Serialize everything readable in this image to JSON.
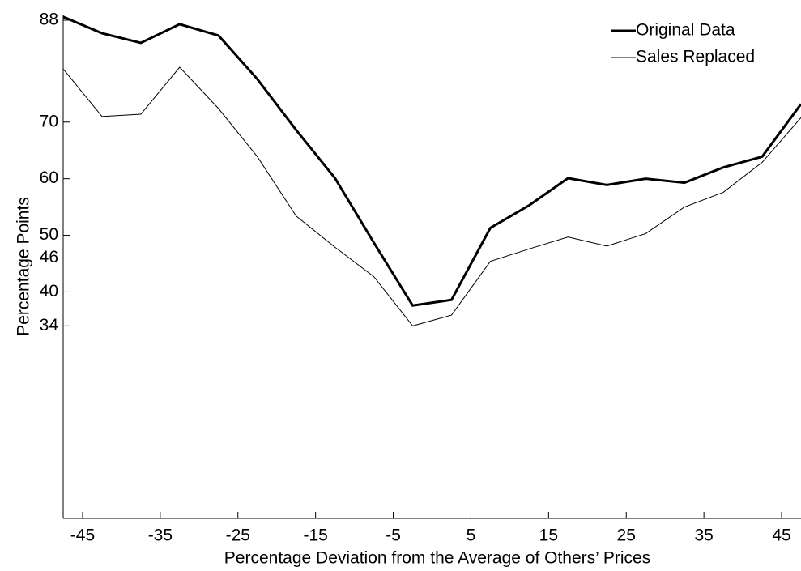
{
  "chart_data": {
    "type": "line",
    "x_label": "Percentage Deviation from the Average of Others’ Prices",
    "y_label": "Percentage Points",
    "x": [
      -47.5,
      -42.5,
      -37.5,
      -32.5,
      -27.5,
      -22.5,
      -17.5,
      -12.5,
      -7.5,
      -2.5,
      2.5,
      7.5,
      12.5,
      17.5,
      22.5,
      27.5,
      32.5,
      37.5,
      42.5,
      47.5
    ],
    "series": [
      {
        "name": "Original Data",
        "color": "#000000",
        "width": 3,
        "values": [
          88.6,
          85.7,
          84,
          87.3,
          85.3,
          77.6,
          68.6,
          60.1,
          48.7,
          37.6,
          38.6,
          51.3,
          55.3,
          60.1,
          58.9,
          60,
          59.3,
          62,
          63.9,
          73.2
        ]
      },
      {
        "name": "Sales Replaced",
        "color": "#000000",
        "width": 1,
        "values": [
          79.4,
          71,
          71.4,
          79.7,
          72.4,
          63.9,
          53.4,
          47.9,
          42.7,
          34,
          35.9,
          45.4,
          47.6,
          49.7,
          48.1,
          50.3,
          55,
          57.6,
          62.9,
          70.8
        ]
      }
    ],
    "reference_line": 46,
    "xlim": [
      -47.5,
      47.5
    ],
    "ylim": [
      0,
      89
    ],
    "xticks": [
      -45,
      -35,
      -25,
      -15,
      -5,
      5,
      15,
      25,
      35,
      45
    ],
    "yticks": [
      34,
      40,
      46,
      50,
      60,
      70,
      88
    ],
    "legend": "top-right"
  }
}
